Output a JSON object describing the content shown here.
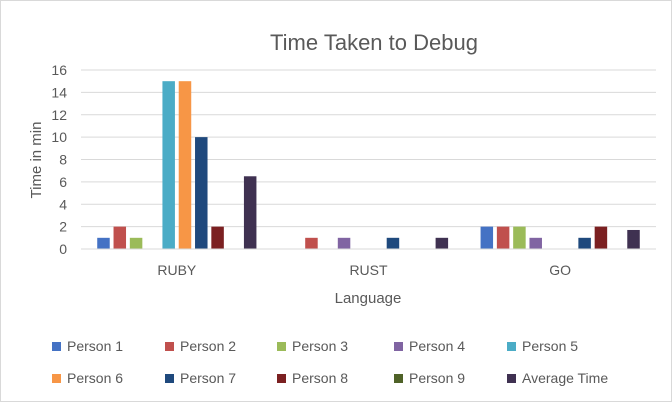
{
  "chart_data": {
    "type": "bar",
    "title": "Time Taken to Debug",
    "xlabel": "Language",
    "ylabel": "Time in min",
    "categories": [
      "RUBY",
      "RUST",
      "GO"
    ],
    "ylim": [
      0,
      16
    ],
    "yticks": [
      0,
      2,
      4,
      6,
      8,
      10,
      12,
      14,
      16
    ],
    "grid": true,
    "legend_position": "bottom",
    "series": [
      {
        "name": "Person 1",
        "color": "#4472C4",
        "values": [
          1,
          0,
          2
        ]
      },
      {
        "name": "Person 2",
        "color": "#C0504D",
        "values": [
          2,
          1,
          2
        ]
      },
      {
        "name": "Person 3",
        "color": "#9BBB59",
        "values": [
          1,
          0,
          2
        ]
      },
      {
        "name": "Person 4",
        "color": "#8064A2",
        "values": [
          0,
          1,
          1
        ]
      },
      {
        "name": "Person 5",
        "color": "#4BACC6",
        "values": [
          15,
          0,
          0
        ]
      },
      {
        "name": "Person 6",
        "color": "#F79646",
        "values": [
          15,
          0,
          0
        ]
      },
      {
        "name": "Person 7",
        "color": "#1F497D",
        "values": [
          10,
          1,
          1
        ]
      },
      {
        "name": "Person 8",
        "color": "#7B2021",
        "values": [
          2,
          0,
          2
        ]
      },
      {
        "name": "Person 9",
        "color": "#4F6228",
        "values": [
          0,
          0,
          0
        ]
      },
      {
        "name": "Average Time",
        "color": "#3F3151",
        "values": [
          6.5,
          1,
          1.7
        ]
      }
    ]
  }
}
